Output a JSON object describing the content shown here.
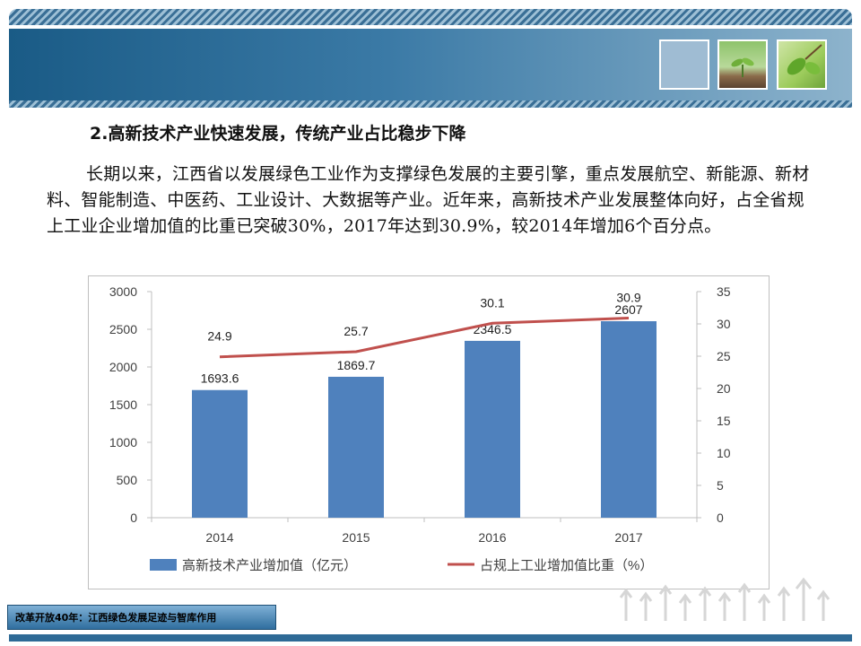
{
  "heading": "2.高新技术产业快速发展，传统产业占比稳步下降",
  "paragraph": "长期以来，江西省以发展绿色工业作为支撑绿色发展的主要引擎，重点发展航空、新能源、新材料、智能制造、中医药、工业设计、大数据等产业。近年来，高新技术产业发展整体向好，占全省规上工业企业增加值的比重已突破30%，2017年达到30.9%，较2014年增加6个百分点。",
  "footer_label": "改革开放40年：江西绿色发展足迹与智库作用",
  "colors": {
    "bar": "#4f81bd",
    "line": "#c0504d",
    "header": "#3b7aa6"
  },
  "chart_data": {
    "type": "bar",
    "categories": [
      "2014",
      "2015",
      "2016",
      "2017"
    ],
    "series": [
      {
        "name": "高新技术产业增加值（亿元）",
        "type": "bar",
        "axis": "left",
        "values": [
          1693.6,
          1869.7,
          2346.5,
          2607
        ],
        "labels": [
          "1693.6",
          "1869.7",
          "2346.5",
          "2607"
        ]
      },
      {
        "name": "占规上工业增加值比重（%）",
        "type": "line",
        "axis": "right",
        "values": [
          24.9,
          25.7,
          30.1,
          30.9
        ],
        "labels": [
          "24.9",
          "25.7",
          "30.1",
          "30.9"
        ]
      }
    ],
    "left_axis": {
      "min": 0,
      "max": 3000,
      "ticks": [
        "0",
        "500",
        "1000",
        "1500",
        "2000",
        "2500",
        "3000"
      ]
    },
    "right_axis": {
      "min": 0,
      "max": 35,
      "ticks": [
        "0",
        "5",
        "10",
        "15",
        "20",
        "25",
        "30",
        "35"
      ]
    },
    "grid": false,
    "legend_position": "bottom"
  }
}
